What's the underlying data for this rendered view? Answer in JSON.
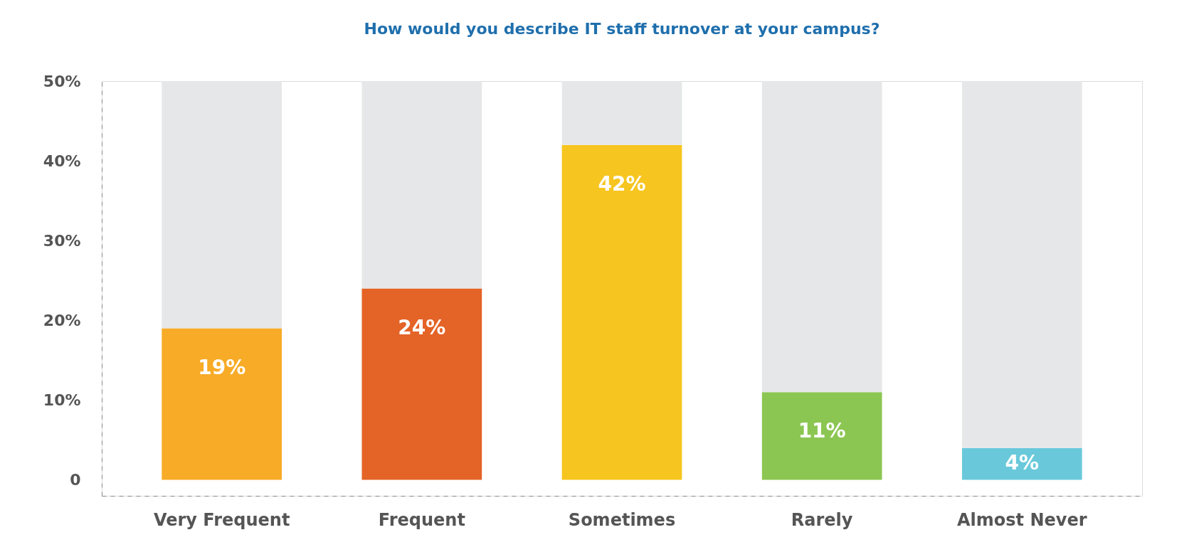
{
  "chart_data": {
    "type": "bar",
    "title": "How would you describe IT staff turnover at your campus?",
    "categories": [
      "Very Frequent",
      "Frequent",
      "Sometimes",
      "Rarely",
      "Almost Never"
    ],
    "stacked": true,
    "series": [
      {
        "colors": [
          "#f8ab27",
          "#e46326",
          "#f7c51f",
          "#8cc652",
          "#69c9db"
        ],
        "values": [
          19,
          24,
          42,
          11,
          4
        ],
        "value_labels": [
          "19%",
          "24%",
          "42%",
          "11%",
          "4%"
        ]
      },
      {
        "color": "#e6e7e8",
        "values": [
          31,
          26,
          8,
          39,
          46
        ]
      }
    ],
    "ylim": [
      -2,
      50
    ],
    "yticks": [
      {
        "value": 0,
        "label": "0"
      },
      {
        "value": 10,
        "label": "10%"
      },
      {
        "value": 20,
        "label": "20%"
      },
      {
        "value": 30,
        "label": "30%"
      },
      {
        "value": 40,
        "label": "40%"
      },
      {
        "value": 50,
        "label": "50%"
      }
    ],
    "grid": false
  }
}
